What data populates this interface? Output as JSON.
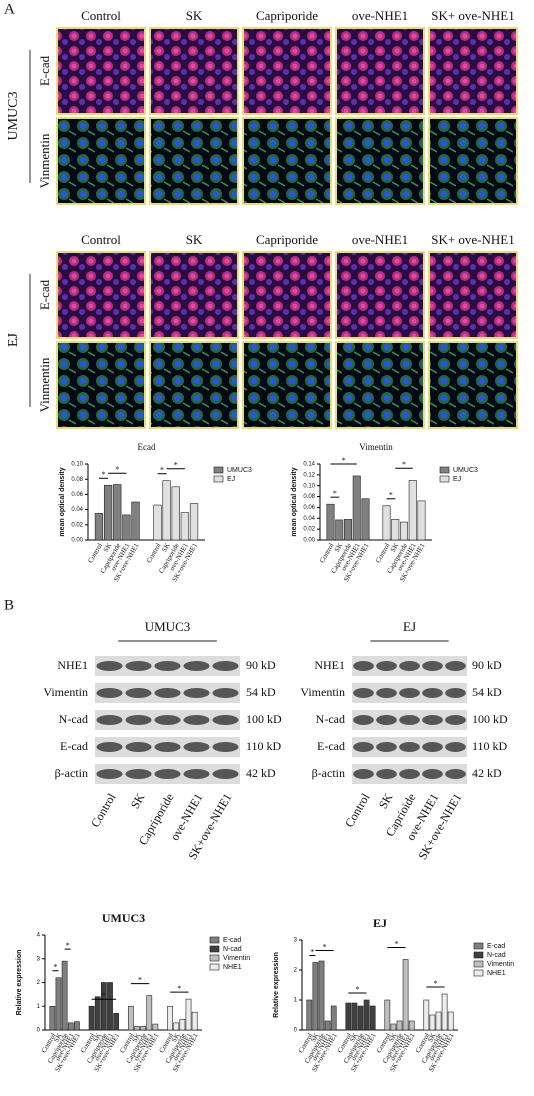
{
  "panel_a": {
    "label": "A",
    "blocks": [
      {
        "cell_line": "UMUC3",
        "columns": [
          "Control",
          "SK",
          "Capriporide",
          "ove-NHE1",
          "SK+ ove-NHE1"
        ],
        "rows": [
          "E-cad",
          "Vinmentin"
        ]
      },
      {
        "cell_line": "EJ",
        "columns": [
          "Control",
          "SK",
          "Capriporide",
          "ove-NHE1",
          "SK+ ove-NHE1"
        ],
        "rows": [
          "E-cad",
          "Vinmentin"
        ]
      }
    ]
  },
  "chart_data": [
    {
      "type": "bar",
      "title": "Ecad",
      "y_label": "mean optical density",
      "categories": [
        "Control",
        "SK",
        "Capriporide",
        "ove-NHE1",
        "SK+ove-NHE1"
      ],
      "series": [
        {
          "name": "UMUC3",
          "color": "#808080",
          "values": [
            0.035,
            0.072,
            0.073,
            0.033,
            0.05
          ]
        },
        {
          "name": "EJ",
          "color": "#e0e0e0",
          "values": [
            0.046,
            0.078,
            0.07,
            0.036,
            0.048
          ]
        }
      ],
      "ylim": [
        0,
        0.1
      ],
      "yticks": [
        {
          "value": 0,
          "label": "0.00"
        },
        {
          "value": 0.02,
          "label": "0.02"
        },
        {
          "value": 0.04,
          "label": "0.04"
        },
        {
          "value": 0.06,
          "label": "0.06"
        },
        {
          "value": 0.08,
          "label": "0.08"
        },
        {
          "value": 0.1,
          "label": "0.10"
        }
      ],
      "legend": "right",
      "significance": [
        {
          "series": "UMUC3",
          "between": [
            "Control",
            "SK"
          ],
          "label": "*"
        },
        {
          "series": "UMUC3",
          "between": [
            "SK",
            "ove-NHE1"
          ],
          "label": "*"
        },
        {
          "series": "EJ",
          "between": [
            "Control",
            "SK"
          ],
          "label": "*"
        },
        {
          "series": "EJ",
          "between": [
            "SK",
            "ove-NHE1"
          ],
          "label": "*"
        }
      ]
    },
    {
      "type": "bar",
      "title": "Vimentin",
      "y_label": "mean optical density",
      "categories": [
        "Control",
        "SK",
        "Capriporide",
        "ove-NHE1",
        "SK+ove-NHE1"
      ],
      "series": [
        {
          "name": "UMUC3",
          "color": "#808080",
          "values": [
            0.066,
            0.037,
            0.038,
            0.118,
            0.076
          ]
        },
        {
          "name": "EJ",
          "color": "#e0e0e0",
          "values": [
            0.063,
            0.038,
            0.033,
            0.11,
            0.072
          ]
        }
      ],
      "ylim": [
        0,
        0.14
      ],
      "yticks": [
        {
          "value": 0,
          "label": "0.00"
        },
        {
          "value": 0.02,
          "label": "0.02"
        },
        {
          "value": 0.04,
          "label": "0.04"
        },
        {
          "value": 0.06,
          "label": "0.06"
        },
        {
          "value": 0.08,
          "label": "0.08"
        },
        {
          "value": 0.1,
          "label": "0.10"
        },
        {
          "value": 0.12,
          "label": "0.12"
        },
        {
          "value": 0.14,
          "label": "0.14"
        }
      ],
      "legend": "right",
      "significance": [
        {
          "series": "UMUC3",
          "between": [
            "Control",
            "SK"
          ],
          "label": "*"
        },
        {
          "series": "UMUC3",
          "between": [
            "Control",
            "ove-NHE1"
          ],
          "label": "*"
        },
        {
          "series": "EJ",
          "between": [
            "Control",
            "SK"
          ],
          "label": "*"
        },
        {
          "series": "EJ",
          "between": [
            "SK",
            "ove-NHE1"
          ],
          "label": "*"
        }
      ]
    },
    {
      "type": "bar",
      "title": "UMUC3",
      "y_label": "Relative expression",
      "categories": [
        "Control",
        "SK",
        "Capriporide",
        "ove-NHE1",
        "SK+ove-NHE1"
      ],
      "series": [
        {
          "name": "E-cad",
          "color": "#7f7f7f",
          "values": [
            1.0,
            2.2,
            2.9,
            0.3,
            0.35
          ]
        },
        {
          "name": "N-cad",
          "color": "#404040",
          "values": [
            1.0,
            1.4,
            2.0,
            2.0,
            0.7
          ]
        },
        {
          "name": "Vimentin",
          "color": "#bfbfbf",
          "values": [
            1.0,
            0.15,
            0.15,
            1.45,
            0.25
          ]
        },
        {
          "name": "NHE1",
          "color": "#ececec",
          "values": [
            1.0,
            0.3,
            0.45,
            1.3,
            0.75
          ]
        }
      ],
      "ylim": [
        0,
        4
      ],
      "yticks": [
        0,
        1,
        2,
        3,
        4
      ],
      "legend": "right",
      "significance": [
        {
          "series": "E-cad",
          "between": [
            "Control",
            "SK"
          ],
          "label": "*"
        },
        {
          "series": "E-cad",
          "between": [
            "Capriporide",
            "ove-NHE1"
          ],
          "label": "*"
        },
        {
          "series": "N-cad",
          "between": [
            "Control",
            "SK+ove-NHE1"
          ],
          "label": "*"
        },
        {
          "series": "Vimentin",
          "between": [
            "Control",
            "ove-NHE1"
          ],
          "label": "*"
        },
        {
          "series": "NHE1",
          "between": [
            "Control",
            "ove-NHE1"
          ],
          "label": "*"
        }
      ]
    },
    {
      "type": "bar",
      "title": "EJ",
      "y_label": "Relative expression",
      "categories": [
        "Control",
        "SK",
        "Capriporide",
        "ove-NHE1",
        "SK+ove-NHE1"
      ],
      "series": [
        {
          "name": "E-cad",
          "color": "#7f7f7f",
          "values": [
            1.0,
            2.25,
            2.3,
            0.3,
            0.8
          ]
        },
        {
          "name": "N-cad",
          "color": "#404040",
          "values": [
            0.9,
            0.9,
            0.8,
            1.0,
            0.8
          ]
        },
        {
          "name": "Vimentin",
          "color": "#bfbfbf",
          "values": [
            1.0,
            0.2,
            0.3,
            2.35,
            0.3
          ]
        },
        {
          "name": "NHE1",
          "color": "#ececec",
          "values": [
            1.0,
            0.5,
            0.6,
            1.2,
            0.6
          ]
        }
      ],
      "ylim": [
        0,
        3
      ],
      "yticks": [
        0,
        1,
        2,
        3
      ],
      "legend": "right",
      "significance": [
        {
          "series": "E-cad",
          "between": [
            "Control",
            "SK"
          ],
          "label": "*"
        },
        {
          "series": "E-cad",
          "between": [
            "SK",
            "SK+ove-NHE1"
          ],
          "label": "*"
        },
        {
          "series": "N-cad",
          "between": [
            "Control",
            "ove-NHE1"
          ],
          "label": "*"
        },
        {
          "series": "Vimentin",
          "between": [
            "Control",
            "ove-NHE1"
          ],
          "label": "*"
        },
        {
          "series": "NHE1",
          "between": [
            "Control",
            "ove-NHE1"
          ],
          "label": "*"
        }
      ]
    }
  ],
  "panel_b": {
    "label": "B",
    "blots": [
      {
        "cell_line": "UMUC3",
        "proteins": [
          "NHE1",
          "Vimentin",
          "N-cad",
          "E-cad",
          "β-actin"
        ],
        "sizes": [
          "90 kD",
          "54 kD",
          "100 kD",
          "110 kD",
          "42 kD"
        ],
        "lanes": [
          "Control",
          "SK",
          "Capriporide",
          "ove-NHE1",
          "SK+ove-NHE1"
        ]
      },
      {
        "cell_line": "EJ",
        "proteins": [
          "NHE1",
          "Vimentin",
          "N-cad",
          "E-cad",
          "β-actin"
        ],
        "sizes": [
          "90 kD",
          "54 kD",
          "100 kD",
          "110 kD",
          "42 kD"
        ],
        "lanes": [
          "Control",
          "SK",
          "Caprioide",
          "ove-NHE1",
          "SK+ove-NHE1"
        ]
      }
    ]
  }
}
